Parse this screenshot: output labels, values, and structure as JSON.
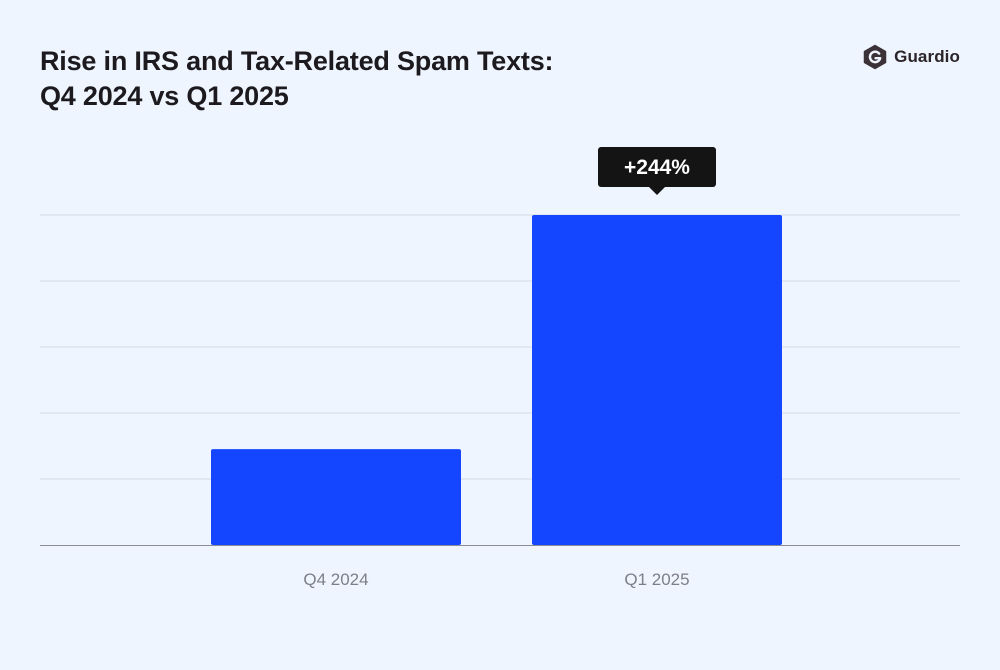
{
  "title": "Rise in IRS and Tax-Related Spam Texts: Q4 2024 vs Q1 2025",
  "brand": {
    "name": "Guardio",
    "logo_icon": "guardio-shield-logo-icon"
  },
  "colors": {
    "background": "#eff5fe",
    "bar": "#1446ff",
    "gridline": "#d6dae3",
    "axis": "#8a8d96",
    "callout_bg": "#141414",
    "callout_text": "#ffffff",
    "tick_text": "#7d7f87",
    "title_text": "#1c1a1e"
  },
  "chart_data": {
    "type": "bar",
    "title": "Rise in IRS and Tax-Related Spam Texts: Q4 2024 vs Q1 2025",
    "xlabel": "",
    "ylabel": "",
    "categories": [
      "Q4 2024",
      "Q1 2025"
    ],
    "values": [
      1,
      3.44
    ],
    "ylim": [
      0,
      3.44
    ],
    "grid": true,
    "y_tick_labels_shown": false,
    "annotations": [
      {
        "category": "Q1 2025",
        "text": "+244%"
      }
    ]
  }
}
